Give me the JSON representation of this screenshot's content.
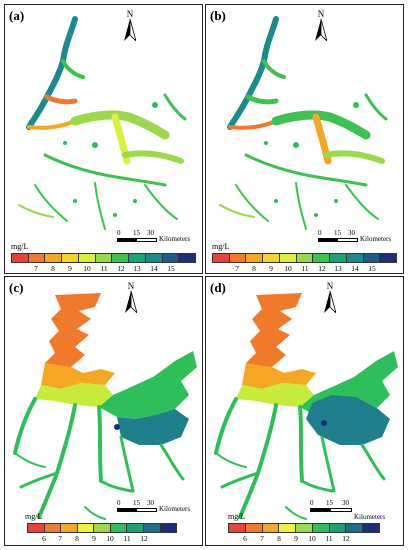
{
  "north_label": "N",
  "units": "mg/L",
  "scalebar": {
    "ticks": [
      "0",
      "15",
      "30"
    ],
    "unit": "Kilometers"
  },
  "legend_top": {
    "labels": [
      "7",
      "8",
      "9",
      "10",
      "11",
      "12",
      "13",
      "14",
      "15"
    ],
    "colors": [
      "#e8423b",
      "#f07a2c",
      "#f5a623",
      "#f5d22e",
      "#d9f03c",
      "#9ad94a",
      "#3cc24f",
      "#1aa37a",
      "#1a8a8f",
      "#1f5a8c",
      "#1c2f7a"
    ]
  },
  "legend_bottom": {
    "labels": [
      "6",
      "7",
      "8",
      "9",
      "10",
      "11",
      "12"
    ],
    "colors": [
      "#e8423b",
      "#f07a2c",
      "#f5a623",
      "#eef23a",
      "#9ad94a",
      "#2fbf5a",
      "#1aa37a",
      "#1f6f8c",
      "#1c2f7a"
    ]
  },
  "panels": [
    {
      "id": "a",
      "label": "(a)"
    },
    {
      "id": "b",
      "label": "(b)"
    },
    {
      "id": "c",
      "label": "(c)"
    },
    {
      "id": "d",
      "label": "(d)"
    }
  ]
}
